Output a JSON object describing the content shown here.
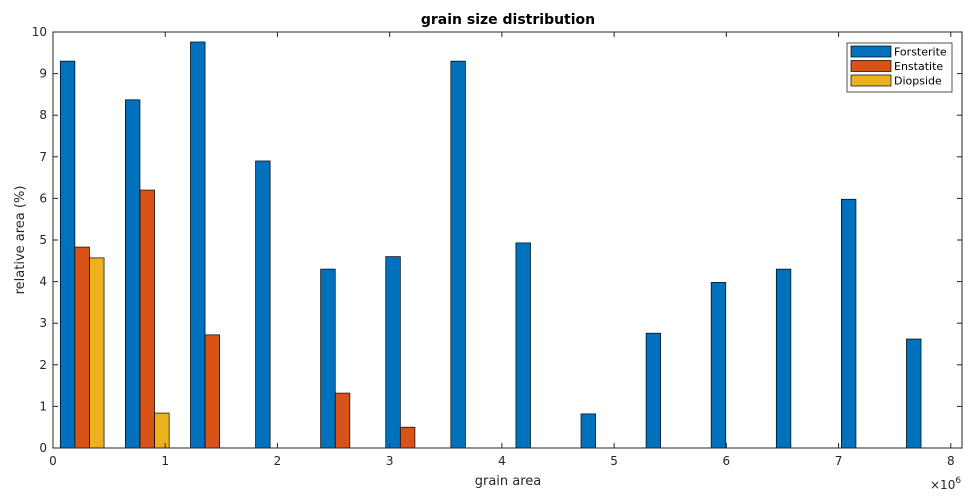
{
  "chart_data": {
    "type": "bar",
    "title": "grain size distribution",
    "xlabel": "grain area",
    "ylabel": "relative area (%)",
    "x_multiplier_label": "×10",
    "x_multiplier_exponent": "6",
    "xlim": [
      0,
      8.1
    ],
    "ylim": [
      0,
      10
    ],
    "xticks": [
      0,
      1,
      2,
      3,
      4,
      5,
      6,
      7,
      8
    ],
    "xtick_labels": [
      "0",
      "1",
      "2",
      "3",
      "4",
      "5",
      "6",
      "7",
      "8"
    ],
    "yticks": [
      0,
      1,
      2,
      3,
      4,
      5,
      6,
      7,
      8,
      9,
      10
    ],
    "ytick_labels": [
      "0",
      "1",
      "2",
      "3",
      "4",
      "5",
      "6",
      "7",
      "8",
      "9",
      "10"
    ],
    "grid": false,
    "legend_position": "top-right",
    "bin_centers": [
      0.26,
      0.84,
      1.42,
      2.0,
      2.58,
      3.16,
      3.74,
      4.32,
      4.9,
      5.48,
      6.06,
      6.64,
      7.22,
      7.8
    ],
    "bar_width": 0.13,
    "series": [
      {
        "name": "Forsterite",
        "color": "#0072BD",
        "values": [
          9.3,
          8.37,
          9.76,
          6.9,
          4.3,
          4.6,
          9.3,
          4.93,
          0.82,
          2.76,
          3.98,
          4.3,
          5.98,
          2.62
        ]
      },
      {
        "name": "Enstatite",
        "color": "#D95319",
        "values": [
          4.83,
          6.2,
          2.72,
          0,
          1.32,
          0.5,
          0,
          0,
          0,
          0,
          0,
          0,
          0,
          0
        ]
      },
      {
        "name": "Diopside",
        "color": "#EDB120",
        "values": [
          4.57,
          0.84,
          0,
          0,
          0,
          0,
          0,
          0,
          0,
          0,
          0,
          0,
          0,
          0
        ]
      }
    ]
  }
}
